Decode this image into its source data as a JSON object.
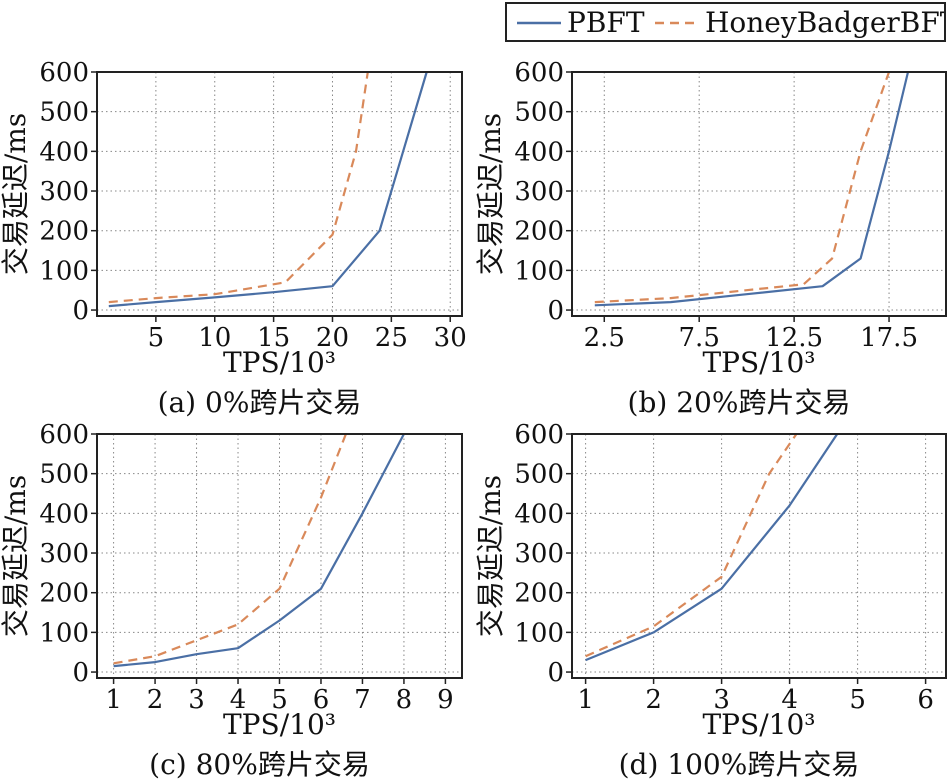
{
  "legend": {
    "items": [
      {
        "label": "PBFT",
        "color": "#4a6fa5",
        "style": "solid"
      },
      {
        "label": "HoneyBadgerBFT",
        "color": "#d9895a",
        "style": "dashed"
      }
    ]
  },
  "chart_data": [
    {
      "type": "line",
      "caption": "(a) 0%跨片交易",
      "xlabel": "TPS/10³",
      "ylabel": "交易延迟/ms",
      "xlim": [
        0,
        31
      ],
      "ylim": [
        -15,
        600
      ],
      "xticks": [
        5,
        10,
        15,
        20,
        25,
        30
      ],
      "yticks": [
        0,
        100,
        200,
        300,
        400,
        500,
        600
      ],
      "grid": true,
      "series": [
        {
          "name": "PBFT",
          "x": [
            1,
            5,
            10,
            15,
            20,
            24,
            28
          ],
          "y": [
            10,
            20,
            32,
            45,
            60,
            200,
            600
          ]
        },
        {
          "name": "HoneyBadgerBFT",
          "x": [
            1,
            5,
            10,
            16,
            20,
            22,
            23
          ],
          "y": [
            20,
            30,
            40,
            70,
            190,
            400,
            600
          ]
        }
      ]
    },
    {
      "type": "line",
      "caption": "(b) 20%跨片交易",
      "xlabel": "TPS/10³",
      "ylabel": "交易延迟/ms",
      "xlim": [
        0.8,
        20.5
      ],
      "ylim": [
        -15,
        600
      ],
      "xticks": [
        2.5,
        7.5,
        12.5,
        17.5
      ],
      "yticks": [
        0,
        100,
        200,
        300,
        400,
        500,
        600
      ],
      "grid": true,
      "series": [
        {
          "name": "PBFT",
          "x": [
            2,
            6,
            10,
            14,
            16,
            17.5,
            18.5
          ],
          "y": [
            12,
            20,
            40,
            60,
            130,
            400,
            600
          ]
        },
        {
          "name": "HoneyBadgerBFT",
          "x": [
            2,
            6,
            10,
            13,
            14.5,
            16,
            17.5
          ],
          "y": [
            20,
            30,
            50,
            65,
            130,
            400,
            600
          ]
        }
      ]
    },
    {
      "type": "line",
      "caption": "(c) 80%跨片交易",
      "xlabel": "TPS/10³",
      "ylabel": "交易延迟/ms",
      "xlim": [
        0.6,
        9.4
      ],
      "ylim": [
        -15,
        600
      ],
      "xticks": [
        1,
        2,
        3,
        4,
        5,
        6,
        7,
        8,
        9
      ],
      "yticks": [
        0,
        100,
        200,
        300,
        400,
        500,
        600
      ],
      "grid": true,
      "series": [
        {
          "name": "PBFT",
          "x": [
            1,
            2,
            3,
            4,
            5,
            6,
            7,
            8
          ],
          "y": [
            15,
            25,
            45,
            60,
            130,
            210,
            400,
            600
          ]
        },
        {
          "name": "HoneyBadgerBFT",
          "x": [
            1,
            2,
            3,
            4,
            5,
            6,
            6.6
          ],
          "y": [
            22,
            40,
            80,
            120,
            210,
            440,
            600
          ]
        }
      ]
    },
    {
      "type": "line",
      "caption": "(d) 100%跨片交易",
      "xlabel": "TPS/10³",
      "ylabel": "交易延迟/ms",
      "xlim": [
        0.8,
        6.3
      ],
      "ylim": [
        -15,
        600
      ],
      "xticks": [
        1,
        2,
        3,
        4,
        5,
        6
      ],
      "yticks": [
        0,
        100,
        200,
        300,
        400,
        500,
        600
      ],
      "grid": true,
      "series": [
        {
          "name": "PBFT",
          "x": [
            1,
            2,
            3,
            4,
            4.7
          ],
          "y": [
            30,
            100,
            210,
            420,
            600
          ]
        },
        {
          "name": "HoneyBadgerBFT",
          "x": [
            1,
            2,
            3,
            3.7,
            4.1
          ],
          "y": [
            40,
            115,
            240,
            500,
            600
          ]
        }
      ]
    }
  ]
}
